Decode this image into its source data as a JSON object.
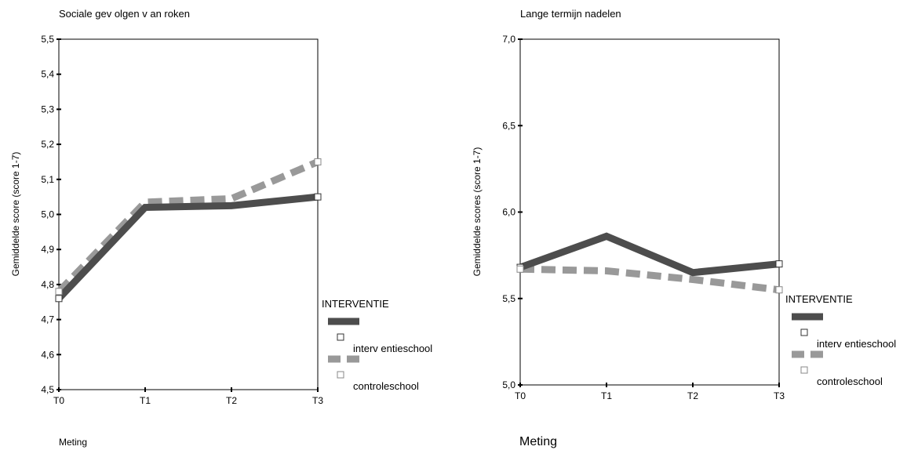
{
  "chart_data": [
    {
      "type": "line",
      "title": "Sociale gev olgen v an roken",
      "xlabel": "Meting",
      "ylabel": "Gemiddelde score (score 1-7)",
      "categories": [
        "T0",
        "T1",
        "T2",
        "T3"
      ],
      "ylim": [
        4.5,
        5.5
      ],
      "yticks": [
        "4,5",
        "4,6",
        "4,7",
        "4,8",
        "4,9",
        "5,0",
        "5,1",
        "5,2",
        "5,3",
        "5,4",
        "5,5"
      ],
      "ytick_values": [
        4.5,
        4.6,
        4.7,
        4.8,
        4.9,
        5.0,
        5.1,
        5.2,
        5.3,
        5.4,
        5.5
      ],
      "grid": false,
      "legend_position": "right",
      "legend_title": "INTERVENTIE",
      "series": [
        {
          "name": "interv entieschool",
          "values": [
            4.76,
            5.02,
            5.025,
            5.05
          ],
          "color": "#4d4d4d",
          "dashed": false
        },
        {
          "name": "controleschool",
          "values": [
            4.78,
            5.035,
            5.045,
            5.15
          ],
          "color": "#999999",
          "dashed": true
        }
      ]
    },
    {
      "type": "line",
      "title": "Lange termijn nadelen",
      "xlabel": "Meting",
      "ylabel": "Gemiddelde scores (score 1-7)",
      "categories": [
        "T0",
        "T1",
        "T2",
        "T3"
      ],
      "ylim": [
        5.0,
        7.0
      ],
      "yticks": [
        "5,0",
        "5,5",
        "6,0",
        "6,5",
        "7,0"
      ],
      "ytick_values": [
        5.0,
        5.5,
        6.0,
        6.5,
        7.0
      ],
      "grid": false,
      "legend_position": "right",
      "legend_title": "INTERVENTIE",
      "series": [
        {
          "name": "interv entieschool",
          "values": [
            5.68,
            5.86,
            5.65,
            5.7
          ],
          "color": "#4d4d4d",
          "dashed": false
        },
        {
          "name": "controleschool",
          "values": [
            5.67,
            5.66,
            5.61,
            5.55
          ],
          "color": "#999999",
          "dashed": true
        }
      ]
    }
  ]
}
